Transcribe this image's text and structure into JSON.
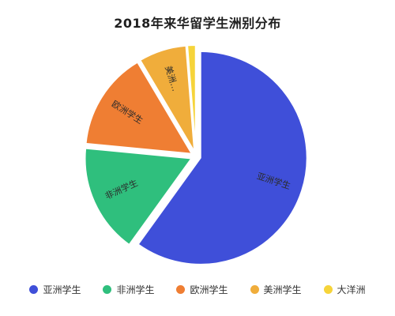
{
  "chart_data": {
    "type": "pie",
    "title": "2018年来华留学生洲别分布",
    "slices": [
      {
        "name": "亚洲学生",
        "label": "亚洲学生",
        "value": 59.95,
        "color": "#3f4fd9"
      },
      {
        "name": "非洲学生",
        "label": "非洲学生",
        "value": 16.57,
        "color": "#2fbf7d"
      },
      {
        "name": "欧洲学生",
        "label": "欧洲学生",
        "value": 14.96,
        "color": "#ef7e33"
      },
      {
        "name": "美洲学生",
        "label": "美洲…",
        "value": 7.26,
        "color": "#f0ad3b"
      },
      {
        "name": "大洋洲",
        "label": "",
        "value": 1.26,
        "color": "#f6d43a"
      }
    ],
    "legend_placement": "bottom"
  }
}
